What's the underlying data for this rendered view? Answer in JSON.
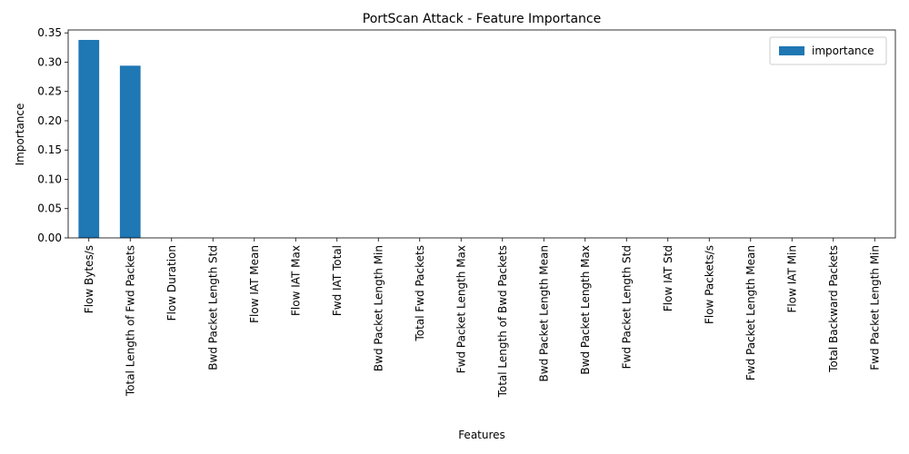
{
  "chart_data": {
    "type": "bar",
    "title": "PortScan Attack - Feature Importance",
    "xlabel": "Features",
    "ylabel": "Importance",
    "ylim": [
      0,
      0.355
    ],
    "yticks": [
      "0.00",
      "0.05",
      "0.10",
      "0.15",
      "0.20",
      "0.25",
      "0.30",
      "0.35"
    ],
    "grid": false,
    "legend": "top-right",
    "bar_color": "#1f77b4",
    "categories": [
      "Flow Bytes/s",
      "Total Length of Fwd Packets",
      "Flow Duration",
      "Bwd Packet Length Std",
      "Flow IAT Mean",
      "Flow IAT Max",
      "Fwd IAT Total",
      "Bwd Packet Length Min",
      "Total Fwd Packets",
      "Fwd Packet Length Max",
      "Total Length of Bwd Packets",
      "Bwd Packet Length Mean",
      "Bwd Packet Length Max",
      "Fwd Packet Length Std",
      "Flow IAT Std",
      "Flow Packets/s",
      "Fwd Packet Length Mean",
      "Flow IAT Min",
      "Total Backward Packets",
      "Fwd Packet Length Min"
    ],
    "series": [
      {
        "name": "importance",
        "values": [
          0.338,
          0.294,
          0,
          0,
          0,
          0,
          0,
          0,
          0,
          0,
          0,
          0,
          0,
          0,
          0,
          0,
          0,
          0,
          0,
          0
        ]
      }
    ]
  }
}
